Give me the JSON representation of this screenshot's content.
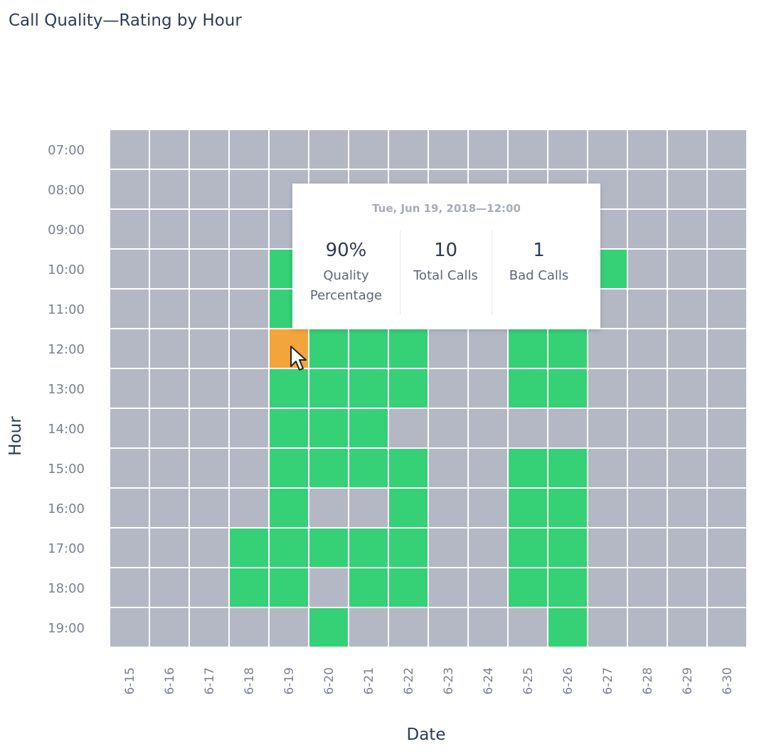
{
  "title": "Call Quality—Rating by Hour",
  "colors": {
    "empty": "#b4b8c5",
    "good": "#36d077",
    "selected": "#f3a43b",
    "grid": "#ffffff",
    "text_dark": "#2d3b55",
    "text_muted": "#7a8190"
  },
  "chart_data": {
    "type": "heatmap",
    "title": "Call Quality—Rating by Hour",
    "xlabel": "Date",
    "ylabel": "Hour",
    "x_categories": [
      "6-15",
      "6-16",
      "6-17",
      "6-18",
      "6-19",
      "6-20",
      "6-21",
      "6-22",
      "6-23",
      "6-24",
      "6-25",
      "6-26",
      "6-27",
      "6-28",
      "6-29",
      "6-30"
    ],
    "y_categories": [
      "07:00",
      "08:00",
      "09:00",
      "10:00",
      "11:00",
      "12:00",
      "13:00",
      "14:00",
      "15:00",
      "16:00",
      "17:00",
      "18:00",
      "19:00"
    ],
    "cell_states_legend": {
      "0": "no data",
      "1": "good",
      "2": "selected"
    },
    "cells": [
      [
        0,
        0,
        0,
        0,
        0,
        0,
        0,
        0,
        0,
        0,
        0,
        0,
        0,
        0,
        0,
        0
      ],
      [
        0,
        0,
        0,
        0,
        0,
        0,
        0,
        0,
        0,
        0,
        0,
        0,
        0,
        0,
        0,
        0
      ],
      [
        0,
        0,
        0,
        0,
        0,
        0,
        0,
        0,
        0,
        0,
        0,
        0,
        0,
        0,
        0,
        0
      ],
      [
        0,
        0,
        0,
        0,
        1,
        0,
        0,
        0,
        0,
        0,
        0,
        0,
        1,
        0,
        0,
        0
      ],
      [
        0,
        0,
        0,
        0,
        1,
        0,
        0,
        0,
        0,
        0,
        0,
        0,
        0,
        0,
        0,
        0
      ],
      [
        0,
        0,
        0,
        0,
        2,
        1,
        1,
        1,
        0,
        0,
        1,
        1,
        0,
        0,
        0,
        0
      ],
      [
        0,
        0,
        0,
        0,
        1,
        1,
        1,
        1,
        0,
        0,
        1,
        1,
        0,
        0,
        0,
        0
      ],
      [
        0,
        0,
        0,
        0,
        1,
        1,
        1,
        0,
        0,
        0,
        0,
        0,
        0,
        0,
        0,
        0
      ],
      [
        0,
        0,
        0,
        0,
        1,
        1,
        1,
        1,
        0,
        0,
        1,
        1,
        0,
        0,
        0,
        0
      ],
      [
        0,
        0,
        0,
        0,
        1,
        0,
        0,
        1,
        0,
        0,
        1,
        1,
        0,
        0,
        0,
        0
      ],
      [
        0,
        0,
        0,
        1,
        1,
        1,
        1,
        1,
        0,
        0,
        1,
        1,
        0,
        0,
        0,
        0
      ],
      [
        0,
        0,
        0,
        1,
        1,
        0,
        1,
        1,
        0,
        0,
        1,
        1,
        0,
        0,
        0,
        0
      ],
      [
        0,
        0,
        0,
        0,
        0,
        1,
        0,
        0,
        0,
        0,
        0,
        1,
        0,
        0,
        0,
        0
      ]
    ],
    "grid": true,
    "legend": "none"
  },
  "tooltip": {
    "date": "Tue, Jun 19, 2018—12:00",
    "quality_value": "90%",
    "quality_label_line1": "Quality",
    "quality_label_line2": "Percentage",
    "total_calls_value": "10",
    "total_calls_label": "Total Calls",
    "bad_calls_value": "1",
    "bad_calls_label": "Bad Calls"
  },
  "cursor_icon": "arrow-pointer-icon"
}
